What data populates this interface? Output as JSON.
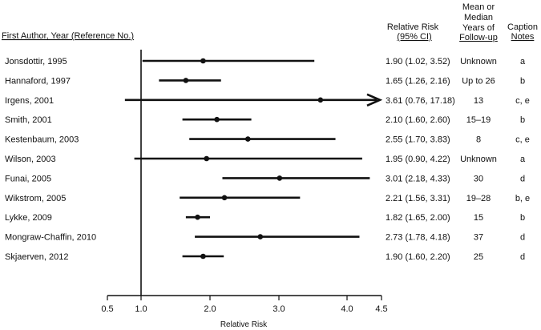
{
  "headers": {
    "study": "First Author, Year (Reference No.)",
    "rr_line1": "Relative Risk",
    "rr_line2": "(95% CI)",
    "fu_line1": "Mean or",
    "fu_line2": "Median",
    "fu_line3": "Years of",
    "fu_line4": "Follow-up",
    "cap_line1": "Caption",
    "cap_line2": "Notes"
  },
  "chart_data": {
    "type": "forest",
    "xlabel": "Relative Risk",
    "xlim": [
      0.5,
      4.5
    ],
    "xticks": [
      0.5,
      1.0,
      2.0,
      3.0,
      4.0,
      4.5
    ],
    "xtick_labels": [
      "0.5",
      "1.0",
      "2.0",
      "3.0",
      "4.0",
      "4.5"
    ],
    "reference_line": 1.0,
    "rows": [
      {
        "study": "Jonsdottir, 1995",
        "rr": 1.9,
        "lo": 1.02,
        "hi": 3.52,
        "ci_text": "1.90 (1.02, 3.52)",
        "followup": "Unknown",
        "notes": "a",
        "arrow": false
      },
      {
        "study": "Hannaford, 1997",
        "rr": 1.65,
        "lo": 1.26,
        "hi": 2.16,
        "ci_text": "1.65 (1.26, 2.16)",
        "followup": "Up to 26",
        "notes": "b",
        "arrow": false
      },
      {
        "study": "Irgens, 2001",
        "rr": 3.61,
        "lo": 0.76,
        "hi": 17.18,
        "ci_text": "3.61 (0.76, 17.18)",
        "followup": "13",
        "notes": "c, e",
        "arrow": true
      },
      {
        "study": "Smith, 2001",
        "rr": 2.1,
        "lo": 1.6,
        "hi": 2.6,
        "ci_text": "2.10 (1.60, 2.60)",
        "followup": "15–19",
        "notes": "b",
        "arrow": false
      },
      {
        "study": "Kestenbaum, 2003",
        "rr": 2.55,
        "lo": 1.7,
        "hi": 3.83,
        "ci_text": "2.55 (1.70, 3.83)",
        "followup": "8",
        "notes": "c, e",
        "arrow": false
      },
      {
        "study": "Wilson, 2003",
        "rr": 1.95,
        "lo": 0.9,
        "hi": 4.22,
        "ci_text": "1.95 (0.90, 4.22)",
        "followup": "Unknown",
        "notes": "a",
        "arrow": false
      },
      {
        "study": "Funai, 2005",
        "rr": 3.01,
        "lo": 2.18,
        "hi": 4.33,
        "ci_text": "3.01 (2.18, 4.33)",
        "followup": "30",
        "notes": "d",
        "arrow": false
      },
      {
        "study": "Wikstrom, 2005",
        "rr": 2.21,
        "lo": 1.56,
        "hi": 3.31,
        "ci_text": "2.21 (1.56, 3.31)",
        "followup": "19–28",
        "notes": "b, e",
        "arrow": false
      },
      {
        "study": "Lykke, 2009",
        "rr": 1.82,
        "lo": 1.65,
        "hi": 2.0,
        "ci_text": "1.82 (1.65, 2.00)",
        "followup": "15",
        "notes": "b",
        "arrow": false
      },
      {
        "study": "Mongraw-Chaffin, 2010",
        "rr": 2.73,
        "lo": 1.78,
        "hi": 4.18,
        "ci_text": "2.73 (1.78, 4.18)",
        "followup": "37",
        "notes": "d",
        "arrow": false
      },
      {
        "study": "Skjaerven, 2012",
        "rr": 1.9,
        "lo": 1.6,
        "hi": 2.2,
        "ci_text": "1.90 (1.60, 2.20)",
        "followup": "25",
        "notes": "d",
        "arrow": false
      }
    ]
  }
}
